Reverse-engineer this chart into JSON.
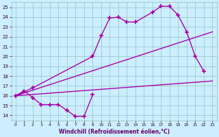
{
  "xlabel": "Windchill (Refroidissement éolien,°C)",
  "bg_color": "#cceeff",
  "grid_color": "#99cccc",
  "line_color": "#aa00aa",
  "xlim": [
    -0.5,
    23.5
  ],
  "ylim": [
    13.5,
    25.5
  ],
  "xticks": [
    0,
    1,
    2,
    3,
    4,
    5,
    6,
    7,
    8,
    9,
    10,
    11,
    12,
    13,
    14,
    15,
    16,
    17,
    18,
    19,
    20,
    21,
    22,
    23
  ],
  "yticks": [
    14,
    15,
    16,
    17,
    18,
    19,
    20,
    21,
    22,
    23,
    24,
    25
  ],
  "line1_x": [
    0,
    1,
    2,
    3,
    4,
    5,
    6,
    7,
    8,
    9
  ],
  "line1_y": [
    16.0,
    16.5,
    15.8,
    15.1,
    15.1,
    15.1,
    14.5,
    13.9,
    13.9,
    16.1
  ],
  "line2_x": [
    0,
    23
  ],
  "line2_y": [
    16.0,
    17.5
  ],
  "line3_x": [
    0,
    2,
    9,
    10,
    11,
    12,
    13,
    14,
    16,
    17,
    18,
    19,
    20,
    21,
    22
  ],
  "line3_y": [
    16.0,
    16.8,
    20.0,
    22.1,
    23.9,
    24.0,
    23.5,
    23.5,
    24.5,
    25.1,
    25.1,
    24.2,
    22.5,
    20.0,
    18.5
  ]
}
